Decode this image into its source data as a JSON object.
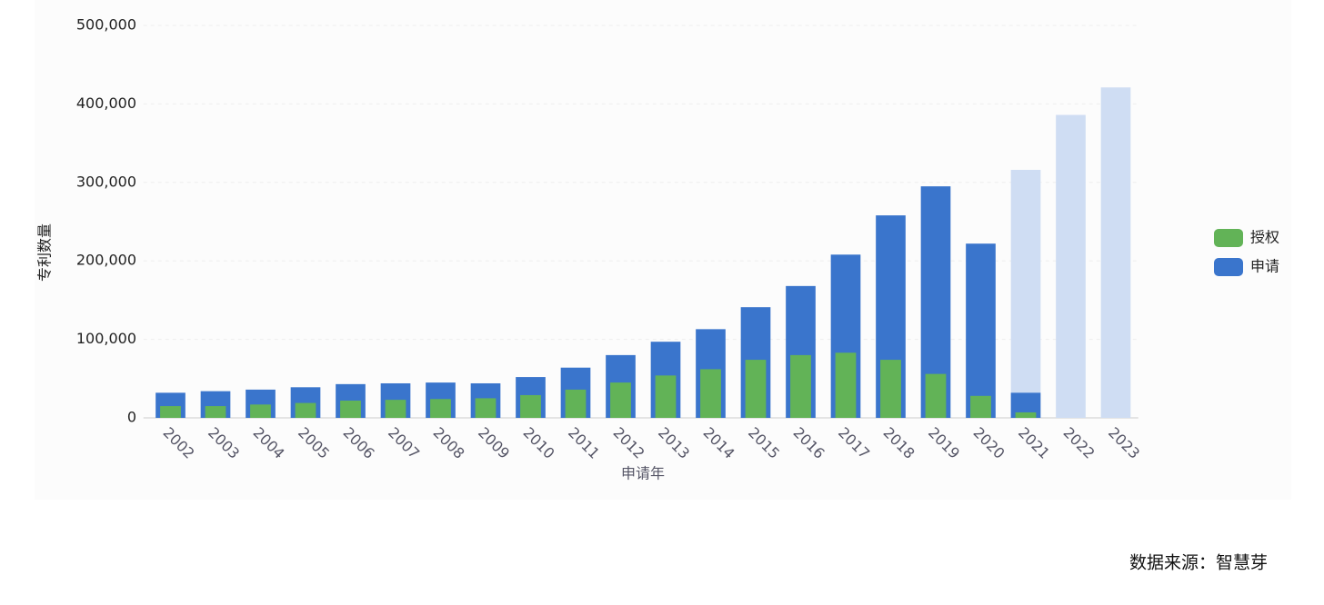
{
  "chart_data": {
    "type": "bar",
    "y_label": "专利数量",
    "x_label": "申请年",
    "source": "数据来源：智慧芽",
    "categories": [
      "2002",
      "2003",
      "2004",
      "2005",
      "2006",
      "2007",
      "2008",
      "2009",
      "2010",
      "2011",
      "2012",
      "2013",
      "2014",
      "2015",
      "2016",
      "2017",
      "2018",
      "2019",
      "2020",
      "2021",
      "2022",
      "2023"
    ],
    "series": [
      {
        "name": "授权",
        "color": "#62b357",
        "values": [
          15000,
          15000,
          17000,
          19000,
          22000,
          23000,
          24000,
          25000,
          29000,
          36000,
          45000,
          54000,
          62000,
          74000,
          80000,
          83000,
          74000,
          56000,
          28000,
          7000,
          null,
          null
        ]
      },
      {
        "name": "申请",
        "color": "#3a75cc",
        "values": [
          32000,
          34000,
          36000,
          39000,
          43000,
          44000,
          45000,
          44000,
          52000,
          64000,
          80000,
          97000,
          113000,
          141000,
          168000,
          208000,
          258000,
          295000,
          222000,
          32000,
          null,
          null
        ]
      },
      {
        "color": "#cfddf3",
        "values": [
          null,
          null,
          null,
          null,
          null,
          null,
          null,
          null,
          null,
          null,
          null,
          null,
          null,
          null,
          null,
          null,
          null,
          null,
          null,
          316000,
          386000,
          421000
        ]
      }
    ],
    "ylim": [
      0,
      500000
    ],
    "yticks": [
      {
        "value": 0,
        "label": "0"
      },
      {
        "value": 100000,
        "label": "100,000"
      },
      {
        "value": 200000,
        "label": "200,000"
      },
      {
        "value": 300000,
        "label": "300,000"
      },
      {
        "value": 400000,
        "label": "400,000"
      },
      {
        "value": 500000,
        "label": "500,000"
      }
    ],
    "grid": true,
    "legend": "right"
  }
}
